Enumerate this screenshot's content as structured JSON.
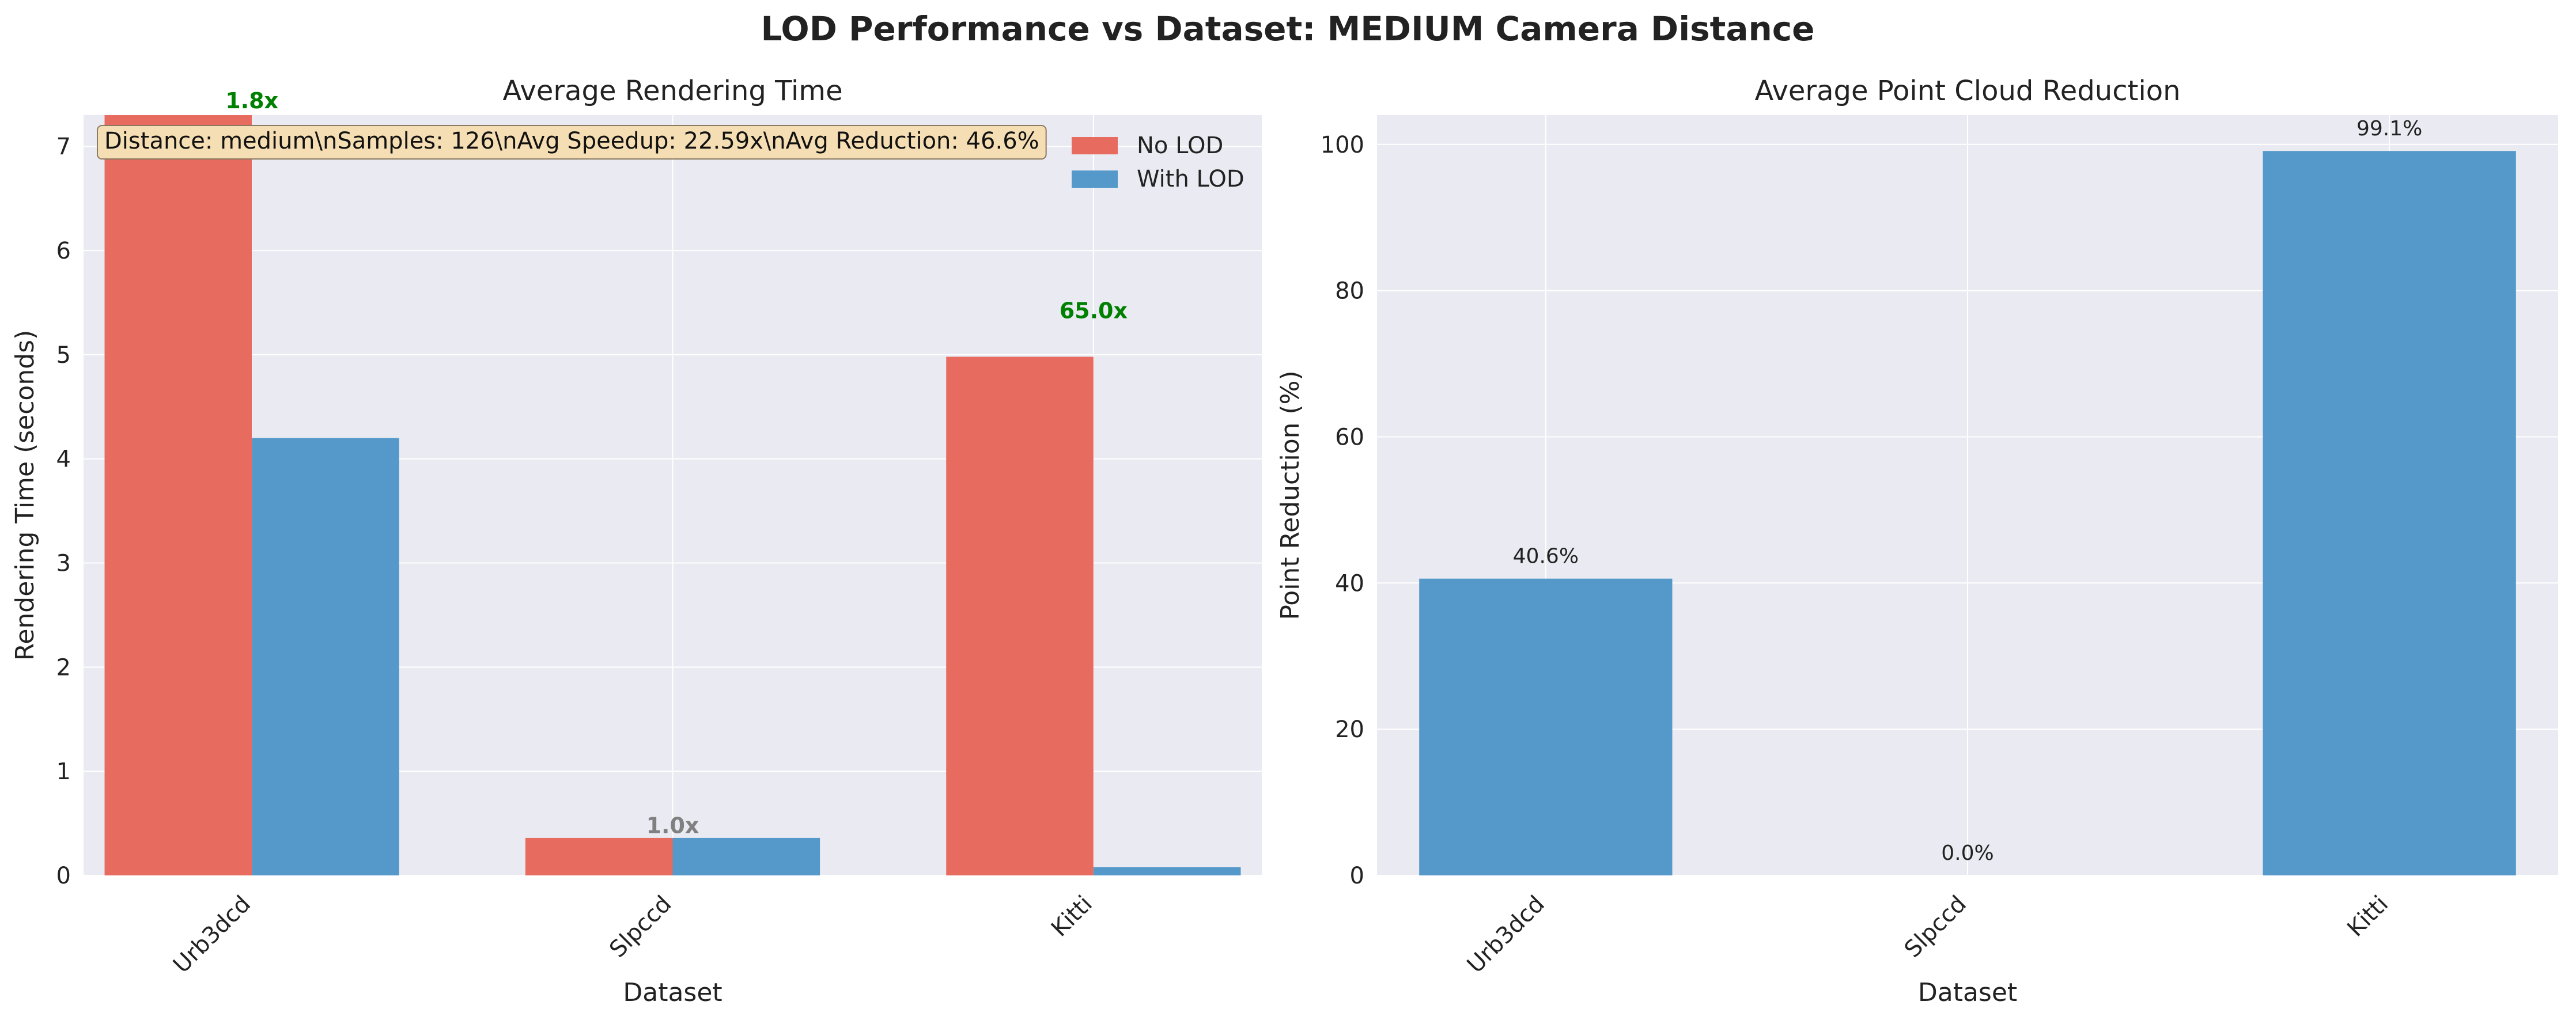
{
  "suptitle": "LOD Performance vs Dataset: MEDIUM Camera Distance",
  "colors": {
    "no_lod": "#e86b60",
    "with_lod": "#5499c9",
    "reduction": "#5499c9",
    "panel_bg": "#eaeaf2",
    "speedup_high": "#008000",
    "speedup_low": "#808080",
    "infobox_bg": "#f5deb3"
  },
  "chart_data": [
    {
      "type": "bar",
      "title": "Average Rendering Time",
      "xlabel": "Dataset",
      "ylabel": "Rendering Time (seconds)",
      "categories": [
        "Urb3dcd",
        "Slpccd",
        "Kitti"
      ],
      "series": [
        {
          "name": "No LOD",
          "values": [
            7.5,
            0.36,
            4.98
          ]
        },
        {
          "name": "With LOD",
          "values": [
            4.2,
            0.36,
            0.08
          ]
        }
      ],
      "speedup_labels": [
        "1.8x",
        "1.0x",
        "65.0x"
      ],
      "yticks": [
        "0",
        "1",
        "2",
        "3",
        "4",
        "5",
        "6",
        "7"
      ],
      "ylim": [
        0,
        7.3
      ],
      "grid": true,
      "legend_position": "top-right",
      "info_box": "Distance: medium\\nSamples: 126\\nAvg Speedup: 22.59x\\nAvg Reduction: 46.6%"
    },
    {
      "type": "bar",
      "title": "Average Point Cloud Reduction",
      "xlabel": "Dataset",
      "ylabel": "Point Reduction (%)",
      "categories": [
        "Urb3dcd",
        "Slpccd",
        "Kitti"
      ],
      "values": [
        40.6,
        0.0,
        99.1
      ],
      "value_labels": [
        "40.6%",
        "0.0%",
        "99.1%"
      ],
      "yticks": [
        "0",
        "20",
        "40",
        "60",
        "80",
        "100"
      ],
      "ylim": [
        0,
        104
      ],
      "grid": true
    }
  ]
}
